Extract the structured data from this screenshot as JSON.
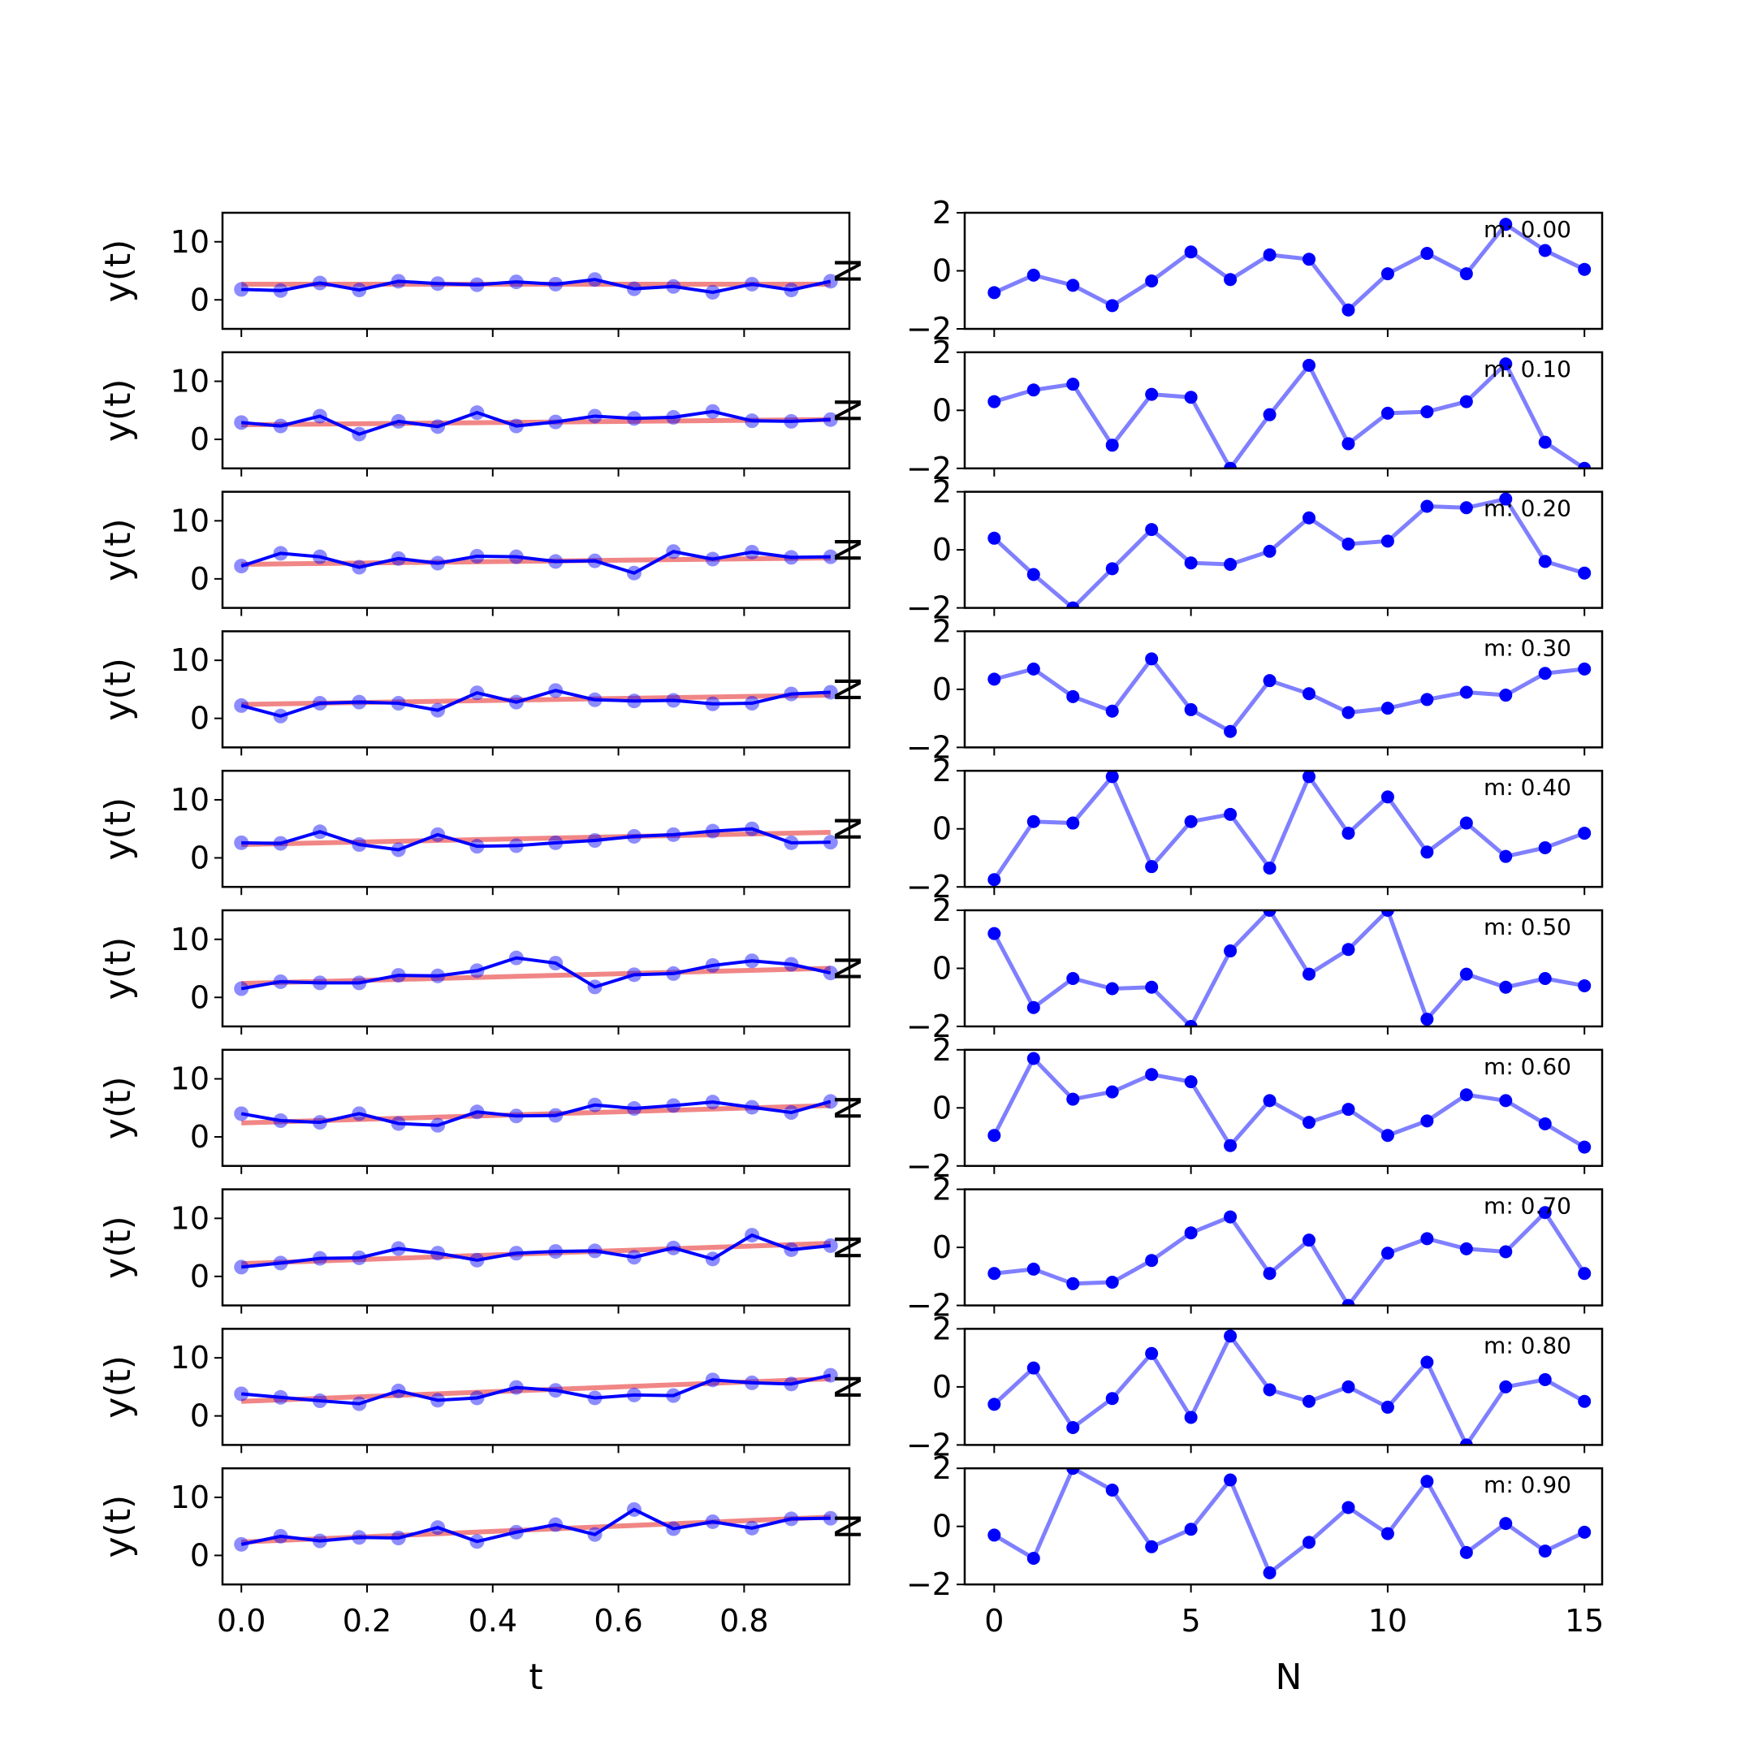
{
  "colors": {
    "signal": "#0000ff",
    "signal_line_alpha": "#0000cc",
    "fit": "#f08080",
    "axes": "#000000"
  },
  "chart_data": [
    {
      "type": "line",
      "panel": "left",
      "xlabel": "t",
      "ylabel": "y(t)",
      "xticks": [
        0.0,
        0.2,
        0.4,
        0.6,
        0.8
      ],
      "xtick_labels": [
        "0.0",
        "0.2",
        "0.4",
        "0.6",
        "0.8"
      ],
      "yticks": [
        0,
        10
      ],
      "ytick_labels": [
        "0",
        "10"
      ],
      "xlim": [
        -0.03,
        0.9675
      ],
      "ylim": [
        -5,
        15
      ],
      "x": [
        0.0,
        0.0625,
        0.125,
        0.1875,
        0.25,
        0.3125,
        0.375,
        0.4375,
        0.5,
        0.5625,
        0.625,
        0.6875,
        0.75,
        0.8125,
        0.875,
        0.9375
      ],
      "rows": [
        {
          "slope": 0.0,
          "y": [
            1.8,
            1.6,
            2.9,
            1.7,
            3.2,
            2.8,
            2.6,
            3.1,
            2.7,
            3.5,
            1.9,
            2.3,
            1.3,
            2.7,
            1.7,
            3.2
          ],
          "fit": [
            2.7,
            2.7
          ]
        },
        {
          "slope": 0.1,
          "y": [
            2.9,
            2.3,
            4.0,
            0.9,
            3.1,
            2.2,
            4.6,
            2.3,
            3.0,
            4.0,
            3.6,
            3.8,
            4.8,
            3.2,
            3.1,
            3.4
          ],
          "fit": [
            2.5,
            3.4
          ]
        },
        {
          "slope": 0.2,
          "y": [
            2.2,
            4.4,
            3.8,
            2.0,
            3.5,
            2.7,
            3.9,
            3.8,
            3.0,
            3.1,
            1.0,
            4.7,
            3.4,
            4.6,
            3.7,
            3.8
          ],
          "fit": [
            2.5,
            3.6
          ]
        },
        {
          "slope": 0.3,
          "y": [
            2.2,
            0.4,
            2.6,
            2.8,
            2.6,
            1.4,
            4.4,
            2.8,
            4.8,
            3.2,
            3.0,
            3.1,
            2.5,
            2.6,
            4.2,
            4.5
          ],
          "fit": [
            2.4,
            4.0
          ]
        },
        {
          "slope": 0.4,
          "y": [
            2.6,
            2.5,
            4.5,
            2.3,
            1.4,
            4.0,
            2.0,
            2.1,
            2.6,
            3.0,
            3.7,
            4.0,
            4.6,
            5.0,
            2.6,
            2.7
          ],
          "fit": [
            2.3,
            4.4
          ]
        },
        {
          "slope": 0.5,
          "y": [
            1.5,
            2.7,
            2.5,
            2.5,
            3.8,
            3.7,
            4.6,
            6.8,
            5.9,
            1.8,
            3.9,
            4.1,
            5.5,
            6.3,
            5.7,
            4.2
          ],
          "fit": [
            2.4,
            5.0
          ]
        },
        {
          "slope": 0.6,
          "y": [
            4.0,
            2.8,
            2.5,
            4.0,
            2.3,
            2.0,
            4.3,
            3.6,
            3.7,
            5.5,
            4.9,
            5.4,
            6.0,
            5.1,
            4.2,
            6.1
          ],
          "fit": [
            2.4,
            5.4
          ]
        },
        {
          "slope": 0.7,
          "y": [
            1.6,
            2.3,
            3.1,
            3.2,
            4.8,
            4.0,
            2.8,
            4.0,
            4.3,
            4.4,
            3.3,
            4.9,
            3.0,
            7.1,
            4.6,
            5.3
          ],
          "fit": [
            2.2,
            5.7
          ]
        },
        {
          "slope": 0.8,
          "y": [
            3.8,
            3.2,
            2.6,
            2.1,
            4.3,
            2.7,
            3.1,
            4.9,
            4.4,
            3.1,
            3.6,
            3.5,
            6.2,
            5.7,
            5.5,
            7.0
          ],
          "fit": [
            2.5,
            6.4
          ]
        },
        {
          "slope": 0.9,
          "y": [
            1.9,
            3.3,
            2.5,
            3.1,
            3.0,
            4.8,
            2.4,
            4.0,
            5.3,
            3.6,
            7.9,
            4.6,
            5.8,
            4.7,
            6.3,
            6.4
          ],
          "fit": [
            2.3,
            6.6
          ]
        }
      ]
    },
    {
      "type": "line",
      "panel": "right",
      "xlabel": "N",
      "ylabel": "N",
      "xticks": [
        0,
        5,
        10,
        15
      ],
      "xtick_labels": [
        "0",
        "5",
        "10",
        "15"
      ],
      "yticks": [
        -2,
        0,
        2
      ],
      "ytick_labels": [
        "−2",
        "0",
        "2"
      ],
      "xlim": [
        -0.75,
        15.45
      ],
      "ylim": [
        -2,
        2
      ],
      "x": [
        0,
        1,
        2,
        3,
        4,
        5,
        6,
        7,
        8,
        9,
        10,
        11,
        12,
        13,
        14,
        15
      ],
      "rows": [
        {
          "label": "m: 0.00",
          "y": [
            -0.75,
            -0.15,
            -0.5,
            -1.2,
            -0.35,
            0.65,
            -0.3,
            0.55,
            0.4,
            -1.35,
            -0.1,
            0.6,
            -0.1,
            1.6,
            0.7,
            0.05
          ]
        },
        {
          "label": "m: 0.10",
          "y": [
            0.3,
            0.7,
            0.9,
            -1.2,
            0.55,
            0.45,
            -2.0,
            -0.15,
            1.55,
            -1.15,
            -0.1,
            -0.05,
            0.3,
            1.6,
            -1.1,
            -2.0
          ]
        },
        {
          "label": "m: 0.20",
          "y": [
            0.4,
            -0.85,
            -2.0,
            -0.65,
            0.7,
            -0.45,
            -0.5,
            -0.05,
            1.1,
            0.2,
            0.3,
            1.5,
            1.45,
            1.75,
            -0.4,
            -0.8
          ]
        },
        {
          "label": "m: 0.30",
          "y": [
            0.35,
            0.7,
            -0.25,
            -0.75,
            1.05,
            -0.7,
            -1.45,
            0.3,
            -0.15,
            -0.8,
            -0.65,
            -0.35,
            -0.1,
            -0.2,
            0.55,
            0.7
          ]
        },
        {
          "label": "m: 0.40",
          "y": [
            -1.75,
            0.25,
            0.2,
            1.8,
            -1.3,
            0.25,
            0.5,
            -1.35,
            1.8,
            -0.15,
            1.1,
            -0.8,
            0.2,
            -0.95,
            -0.65,
            -0.15
          ]
        },
        {
          "label": "m: 0.50",
          "y": [
            1.2,
            -1.35,
            -0.35,
            -0.7,
            -0.65,
            -2.0,
            0.6,
            2.0,
            -0.2,
            0.65,
            2.0,
            -1.75,
            -0.2,
            -0.65,
            -0.35,
            -0.6
          ]
        },
        {
          "label": "m: 0.60",
          "y": [
            -0.95,
            1.7,
            0.3,
            0.55,
            1.15,
            0.9,
            -1.3,
            0.25,
            -0.5,
            -0.05,
            -0.95,
            -0.45,
            0.45,
            0.25,
            -0.55,
            -1.35
          ]
        },
        {
          "label": "m: 0.70",
          "y": [
            -0.9,
            -0.75,
            -1.25,
            -1.2,
            -0.45,
            0.5,
            1.05,
            -0.9,
            0.25,
            -2.0,
            -0.2,
            0.3,
            -0.05,
            -0.15,
            1.2,
            -0.9
          ]
        },
        {
          "label": "m: 0.80",
          "y": [
            -0.6,
            0.65,
            -1.4,
            -0.4,
            1.15,
            -1.05,
            1.75,
            -0.1,
            -0.5,
            0.0,
            -0.7,
            0.85,
            -2.0,
            0.0,
            0.25,
            -0.5
          ]
        },
        {
          "label": "m: 0.90",
          "y": [
            -0.3,
            -1.1,
            2.0,
            1.25,
            -0.7,
            -0.1,
            1.6,
            -1.6,
            -0.55,
            0.65,
            -0.25,
            1.55,
            -0.9,
            0.1,
            -0.85,
            -0.2
          ]
        }
      ]
    }
  ]
}
